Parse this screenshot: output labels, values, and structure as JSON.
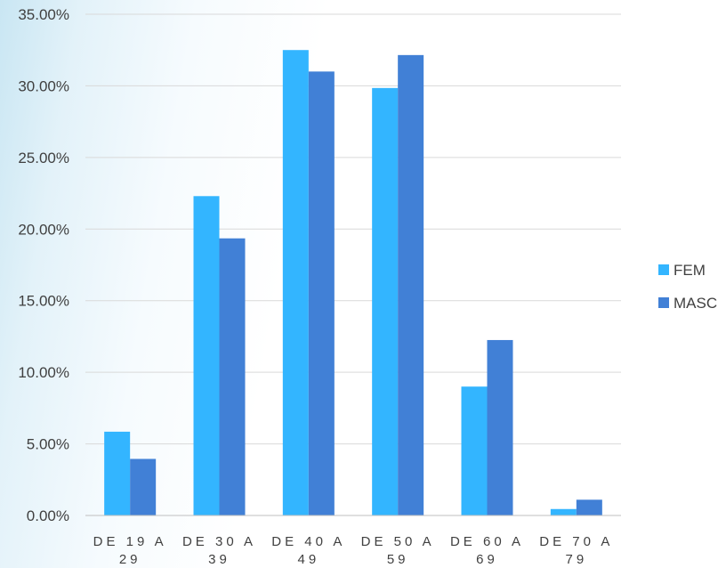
{
  "chart_data": {
    "type": "bar",
    "title": "",
    "xlabel": "",
    "ylabel": "",
    "categories": [
      [
        "DE 19 A",
        "29"
      ],
      [
        "DE 30 A",
        "39"
      ],
      [
        "DE 40 A",
        "49"
      ],
      [
        "DE 50 A",
        "59"
      ],
      [
        "DE 60 A",
        "69"
      ],
      [
        "DE 70 A",
        "79"
      ]
    ],
    "series": [
      {
        "name": "FEM",
        "color": "#33b5ff",
        "values": [
          5.85,
          22.3,
          32.5,
          29.85,
          9.0,
          0.45
        ]
      },
      {
        "name": "MASC",
        "color": "#4180d6",
        "values": [
          3.95,
          19.35,
          31.0,
          32.15,
          12.25,
          1.1
        ]
      }
    ],
    "ylim": [
      0,
      35
    ],
    "yticks": [
      "0.00%",
      "5.00%",
      "10.00%",
      "15.00%",
      "20.00%",
      "25.00%",
      "30.00%",
      "35.00%"
    ],
    "ytick_values": [
      0,
      5,
      10,
      15,
      20,
      25,
      30,
      35
    ],
    "grid": true,
    "legend_position": "right"
  }
}
